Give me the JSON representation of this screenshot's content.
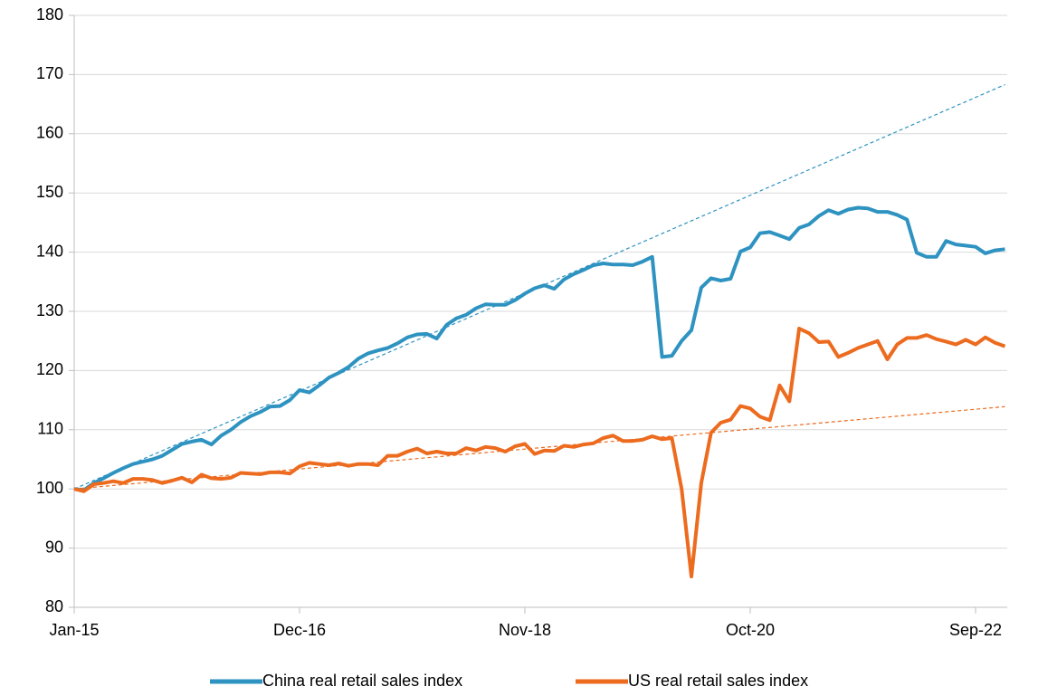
{
  "chart_data": {
    "type": "line",
    "categories": [
      "Jan-15",
      null,
      null,
      null,
      null,
      null,
      null,
      null,
      null,
      null,
      null,
      null,
      null,
      null,
      null,
      null,
      null,
      null,
      null,
      null,
      null,
      null,
      null,
      "Dec-16",
      null,
      null,
      null,
      null,
      null,
      null,
      null,
      null,
      null,
      null,
      null,
      null,
      null,
      null,
      null,
      null,
      null,
      null,
      null,
      null,
      null,
      null,
      "Nov-18",
      null,
      null,
      null,
      null,
      null,
      null,
      null,
      null,
      null,
      null,
      null,
      null,
      null,
      null,
      null,
      null,
      null,
      null,
      null,
      null,
      null,
      null,
      "Oct-20",
      null,
      null,
      null,
      null,
      null,
      null,
      null,
      null,
      null,
      null,
      null,
      null,
      null,
      null,
      null,
      null,
      null,
      null,
      null,
      null,
      null,
      null,
      "Sep-22",
      null,
      null,
      null
    ],
    "series": [
      {
        "name": "China real retail sales index",
        "color": "#2e93c1",
        "values": [
          100,
          99.8,
          101,
          101.8,
          102.7,
          103.5,
          104.2,
          104.6,
          105,
          105.6,
          106.6,
          107.6,
          108,
          108.3,
          107.5,
          109,
          110,
          111.3,
          112.3,
          113,
          113.9,
          114,
          115,
          116.7,
          116.3,
          117.5,
          118.8,
          119.6,
          120.6,
          122,
          122.9,
          123.4,
          123.8,
          124.6,
          125.6,
          126.1,
          126.2,
          125.4,
          127.7,
          128.8,
          129.4,
          130.5,
          131.2,
          131.1,
          131.1,
          131.9,
          133,
          133.9,
          134.4,
          133.8,
          135.4,
          136.3,
          137,
          137.8,
          138.1,
          137.9,
          137.9,
          137.8,
          138.4,
          139.2,
          122.3,
          122.5,
          125,
          126.8,
          134,
          135.6,
          135.2,
          135.5,
          140.1,
          140.8,
          143.2,
          143.4,
          142.8,
          142.2,
          144.1,
          144.7,
          146.1,
          147.1,
          146.5,
          147.2,
          147.5,
          147.4,
          146.8,
          146.8,
          146.3,
          145.5,
          139.9,
          139.2,
          139.2,
          141.9,
          141.3,
          141.1,
          140.9,
          139.8,
          140.3,
          140.5
        ],
        "trend": [
          100,
          168.3
        ]
      },
      {
        "name": "US real retail sales index",
        "color": "#ec6b1f",
        "values": [
          100,
          99.6,
          100.8,
          101,
          101.3,
          101,
          101.7,
          101.7,
          101.5,
          101,
          101.4,
          101.9,
          101.1,
          102.4,
          101.8,
          101.7,
          101.9,
          102.7,
          102.6,
          102.5,
          102.8,
          102.8,
          102.6,
          103.8,
          104.4,
          104.2,
          104,
          104.3,
          103.9,
          104.2,
          104.2,
          104,
          105.6,
          105.6,
          106.3,
          106.8,
          106,
          106.3,
          106,
          106,
          106.9,
          106.5,
          107.1,
          106.9,
          106.3,
          107.2,
          107.6,
          105.9,
          106.5,
          106.4,
          107.3,
          107.1,
          107.5,
          107.7,
          108.6,
          109,
          108.1,
          108.1,
          108.3,
          108.9,
          108.4,
          108.6,
          100,
          85.2,
          101,
          109.5,
          111.2,
          111.7,
          114,
          113.6,
          112.2,
          111.6,
          117.5,
          114.8,
          127.1,
          126.3,
          124.8,
          124.9,
          122.3,
          123,
          123.8,
          124.4,
          125,
          121.9,
          124.4,
          125.5,
          125.5,
          126,
          125.3,
          124.9,
          124.4,
          125.2,
          124.4,
          125.6,
          124.7,
          124.1
        ],
        "trend": [
          100,
          113.9
        ]
      }
    ],
    "ylim": [
      80,
      180
    ],
    "yticks": [
      80,
      90,
      100,
      110,
      120,
      130,
      140,
      150,
      160,
      170,
      180
    ],
    "grid": true,
    "legend": "bottom"
  }
}
